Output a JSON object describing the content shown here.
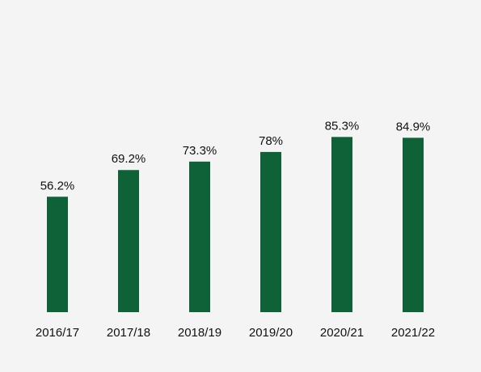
{
  "chart_data": {
    "type": "bar",
    "categories": [
      "2016/17",
      "2017/18",
      "2018/19",
      "2019/20",
      "2020/21",
      "2021/22"
    ],
    "values": [
      56.2,
      69.2,
      73.3,
      78,
      85.3,
      84.9
    ],
    "value_labels": [
      "56.2%",
      "69.2%",
      "73.3%",
      "78%",
      "85.3%",
      "84.9%"
    ],
    "unit": "%",
    "title": "",
    "xlabel": "",
    "ylabel": "",
    "ylim": [
      0,
      113
    ],
    "grid": false,
    "legend": "none",
    "bar_color": "#0f6238",
    "background_color": "#f4f4f4",
    "text_color": "#111111"
  }
}
